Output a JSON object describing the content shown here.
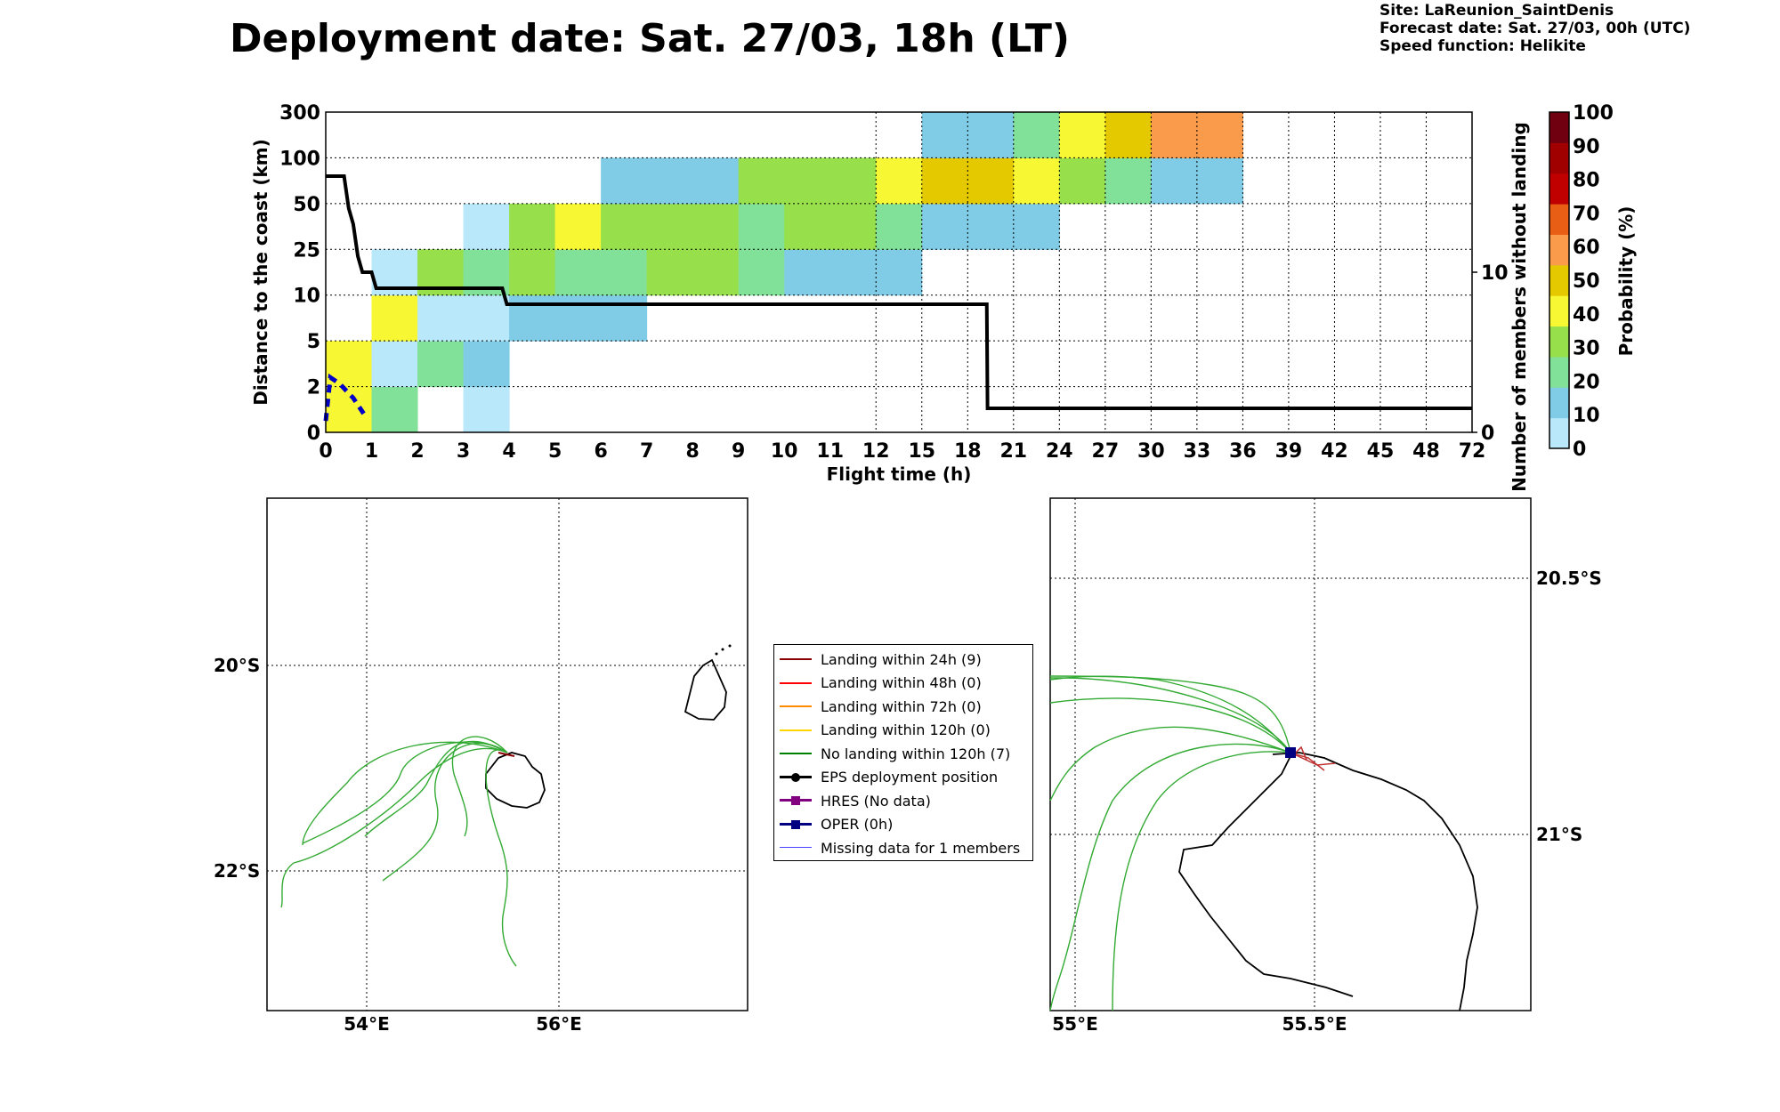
{
  "header": {
    "title": "Deployment date: Sat. 27/03, 18h (LT)",
    "site": "Site: LaReunion_SaintDenis",
    "forecast": "Forecast date: Sat. 27/03, 00h (UTC)",
    "speed": "Speed function: Helikite"
  },
  "chart_data": [
    {
      "type": "heatmap",
      "xlabel": "Flight time (h)",
      "ylabel": "Distance to the coast (km)",
      "ylabel_right": "Number of members without landing",
      "colorbar_label": "Probability (%)",
      "x_ticks": [
        "0",
        "1",
        "2",
        "3",
        "4",
        "5",
        "6",
        "7",
        "8",
        "9",
        "10",
        "11",
        "12",
        "15",
        "18",
        "21",
        "24",
        "27",
        "30",
        "33",
        "36",
        "39",
        "42",
        "45",
        "48",
        "72"
      ],
      "y_ticks": [
        "0",
        "2",
        "5",
        "10",
        "25",
        "50",
        "100",
        "300"
      ],
      "y_right_ticks": [
        "0",
        "10"
      ],
      "colorbar": {
        "levels": [
          "0",
          "10",
          "20",
          "30",
          "40",
          "50",
          "60",
          "70",
          "80",
          "90",
          "100"
        ],
        "colors": [
          "#b8e8fa",
          "#80cce6",
          "#82e198",
          "#97e04c",
          "#f7f733",
          "#e4c800",
          "#fa9b4c",
          "#e85e14",
          "#c00000",
          "#a00000",
          "#700010"
        ]
      },
      "cells": [
        {
          "x": 0,
          "y": 0,
          "p": 45
        },
        {
          "x": 0,
          "y": 1,
          "p": 45
        },
        {
          "x": 1,
          "y": 0,
          "p": 25
        },
        {
          "x": 1,
          "y": 1,
          "p": 5
        },
        {
          "x": 1,
          "y": 2,
          "p": 45
        },
        {
          "x": 1,
          "y": 3,
          "p": 5
        },
        {
          "x": 2,
          "y": 1,
          "p": 25
        },
        {
          "x": 2,
          "y": 2,
          "p": 5
        },
        {
          "x": 2,
          "y": 3,
          "p": 35
        },
        {
          "x": 3,
          "y": 0,
          "p": 5
        },
        {
          "x": 3,
          "y": 1,
          "p": 15
        },
        {
          "x": 3,
          "y": 2,
          "p": 5
        },
        {
          "x": 3,
          "y": 3,
          "p": 25
        },
        {
          "x": 3,
          "y": 4,
          "p": 5
        },
        {
          "x": 4,
          "y": 2,
          "p": 15
        },
        {
          "x": 4,
          "y": 3,
          "p": 35
        },
        {
          "x": 4,
          "y": 4,
          "p": 35
        },
        {
          "x": 5,
          "y": 2,
          "p": 15
        },
        {
          "x": 5,
          "y": 3,
          "p": 25
        },
        {
          "x": 5,
          "y": 4,
          "p": 45
        },
        {
          "x": 6,
          "y": 2,
          "p": 15
        },
        {
          "x": 6,
          "y": 3,
          "p": 25
        },
        {
          "x": 6,
          "y": 4,
          "p": 35
        },
        {
          "x": 6,
          "y": 5,
          "p": 15
        },
        {
          "x": 7,
          "y": 3,
          "p": 35
        },
        {
          "x": 7,
          "y": 4,
          "p": 35
        },
        {
          "x": 7,
          "y": 5,
          "p": 15
        },
        {
          "x": 8,
          "y": 3,
          "p": 35
        },
        {
          "x": 8,
          "y": 4,
          "p": 35
        },
        {
          "x": 8,
          "y": 5,
          "p": 15
        },
        {
          "x": 9,
          "y": 3,
          "p": 25
        },
        {
          "x": 9,
          "y": 4,
          "p": 25
        },
        {
          "x": 9,
          "y": 5,
          "p": 35
        },
        {
          "x": 10,
          "y": 3,
          "p": 15
        },
        {
          "x": 10,
          "y": 4,
          "p": 35
        },
        {
          "x": 10,
          "y": 5,
          "p": 35
        },
        {
          "x": 11,
          "y": 3,
          "p": 15
        },
        {
          "x": 11,
          "y": 4,
          "p": 35
        },
        {
          "x": 11,
          "y": 5,
          "p": 35
        },
        {
          "x": 12,
          "y": 3,
          "p": 15
        },
        {
          "x": 12,
          "y": 4,
          "p": 25
        },
        {
          "x": 12,
          "y": 5,
          "p": 45
        },
        {
          "x": 13,
          "y": 4,
          "p": 15
        },
        {
          "x": 13,
          "y": 5,
          "p": 55
        },
        {
          "x": 13,
          "y": 6,
          "p": 15
        },
        {
          "x": 14,
          "y": 4,
          "p": 15
        },
        {
          "x": 14,
          "y": 5,
          "p": 55
        },
        {
          "x": 14,
          "y": 6,
          "p": 15
        },
        {
          "x": 15,
          "y": 4,
          "p": 15
        },
        {
          "x": 15,
          "y": 5,
          "p": 45
        },
        {
          "x": 15,
          "y": 6,
          "p": 25
        },
        {
          "x": 16,
          "y": 5,
          "p": 35
        },
        {
          "x": 16,
          "y": 6,
          "p": 45
        },
        {
          "x": 17,
          "y": 5,
          "p": 25
        },
        {
          "x": 17,
          "y": 6,
          "p": 55
        },
        {
          "x": 18,
          "y": 5,
          "p": 15
        },
        {
          "x": 18,
          "y": 6,
          "p": 65
        },
        {
          "x": 19,
          "y": 5,
          "p": 15
        },
        {
          "x": 19,
          "y": 6,
          "p": 65
        }
      ],
      "members_line": [
        {
          "t": 0,
          "n": 16
        },
        {
          "t": 0.4,
          "n": 16
        },
        {
          "t": 0.5,
          "n": 14
        },
        {
          "t": 0.6,
          "n": 13
        },
        {
          "t": 0.7,
          "n": 11
        },
        {
          "t": 0.8,
          "n": 10
        },
        {
          "t": 1.0,
          "n": 10
        },
        {
          "t": 1.1,
          "n": 9
        },
        {
          "t": 3.85,
          "n": 9
        },
        {
          "t": 3.95,
          "n": 8
        },
        {
          "t": 19.25,
          "n": 8
        },
        {
          "t": 19.3,
          "n": 1.5
        },
        {
          "t": 72,
          "n": 1.5
        }
      ],
      "oper_line": [
        {
          "t": 0,
          "d": 0.5
        },
        {
          "t": 0.1,
          "d": 2.6
        },
        {
          "t": 0.3,
          "d": 2.2
        },
        {
          "t": 0.6,
          "d": 1.5
        },
        {
          "t": 0.9,
          "d": 0.6
        }
      ]
    }
  ],
  "maps": {
    "left": {
      "lon_ticks": [
        "54°E",
        "56°E"
      ],
      "lat_ticks": [
        "20°S",
        "22°S"
      ]
    },
    "right": {
      "lon_ticks": [
        "55°E",
        "55.5°E"
      ],
      "lat_ticks": [
        "20.5°S",
        "21°S"
      ]
    }
  },
  "legend": [
    {
      "label": "Landing within 24h (9)",
      "color": "#8b0000",
      "style": "line"
    },
    {
      "label": "Landing within 48h (0)",
      "color": "#ff0000",
      "style": "line"
    },
    {
      "label": "Landing within 72h (0)",
      "color": "#ff8c00",
      "style": "line"
    },
    {
      "label": "Landing within 120h (0)",
      "color": "#ffd700",
      "style": "line"
    },
    {
      "label": "No landing within 120h (7)",
      "color": "#008000",
      "style": "line"
    },
    {
      "label": "EPS deployment position",
      "color": "#000000",
      "style": "dot"
    },
    {
      "label": "HRES (No data)",
      "color": "#800080",
      "style": "square"
    },
    {
      "label": "OPER (0h)",
      "color": "#000080",
      "style": "square"
    },
    {
      "label": "Missing data for 1 members",
      "color": "#4444ff",
      "style": "thin"
    }
  ]
}
